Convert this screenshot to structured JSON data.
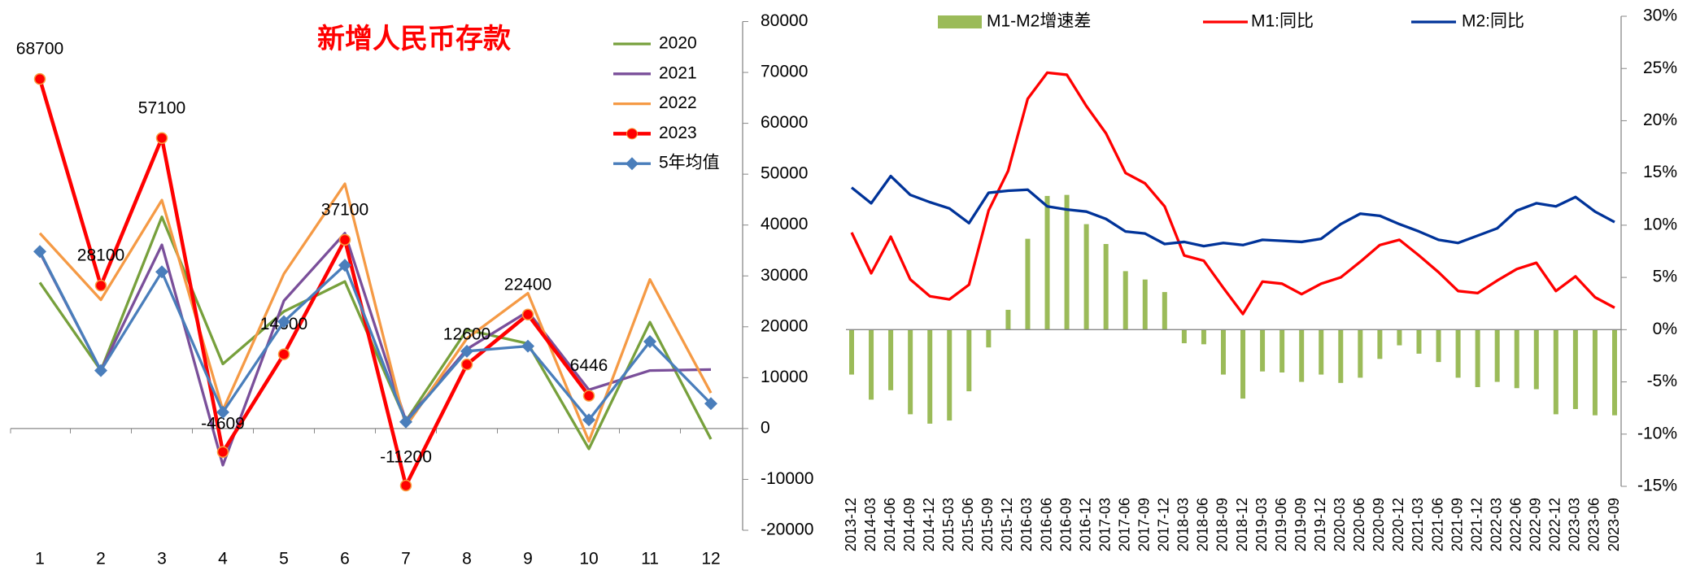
{
  "chart_data": [
    {
      "type": "line",
      "title": "新增人民币存款",
      "categories": [
        "1",
        "2",
        "3",
        "4",
        "5",
        "6",
        "7",
        "8",
        "9",
        "10",
        "11",
        "12"
      ],
      "ylim": [
        -20000,
        80000
      ],
      "yticks": [
        -20000,
        -10000,
        0,
        10000,
        20000,
        30000,
        40000,
        50000,
        60000,
        70000,
        80000
      ],
      "series": [
        {
          "name": "2020",
          "color": "#77a03c",
          "values": [
            28700,
            11400,
            41600,
            12700,
            23000,
            28900,
            1500,
            19400,
            16700,
            -4000,
            20900,
            -2100
          ]
        },
        {
          "name": "2021",
          "color": "#7a4f9a",
          "values": [
            34600,
            11400,
            36100,
            -7200,
            25100,
            38400,
            1500,
            15600,
            23000,
            7600,
            11400,
            11600
          ]
        },
        {
          "name": "2022",
          "color": "#f59a45",
          "values": [
            38400,
            25300,
            44900,
            3600,
            30400,
            48100,
            400,
            17700,
            26600,
            -2500,
            29300,
            7000
          ]
        },
        {
          "name": "2023",
          "color": "#ff0000",
          "marker": "circle",
          "data_labels": true,
          "values": [
            68700,
            28100,
            57100,
            -4609,
            14600,
            37100,
            -11200,
            12600,
            22400,
            6446,
            null,
            null
          ]
        },
        {
          "name": "5年均值",
          "color": "#4a7ebb",
          "marker": "diamond",
          "values": [
            34800,
            11400,
            30800,
            3200,
            21000,
            32100,
            1300,
            15200,
            16200,
            1700,
            17100,
            4900
          ]
        }
      ]
    },
    {
      "type": "bar_line",
      "categories": [
        "2013-12",
        "2014-03",
        "2014-06",
        "2014-09",
        "2014-12",
        "2015-03",
        "2015-06",
        "2015-09",
        "2015-12",
        "2016-03",
        "2016-06",
        "2016-09",
        "2016-12",
        "2017-03",
        "2017-06",
        "2017-09",
        "2017-12",
        "2018-03",
        "2018-06",
        "2018-09",
        "2018-12",
        "2019-03",
        "2019-06",
        "2019-09",
        "2019-12",
        "2020-03",
        "2020-06",
        "2020-09",
        "2020-12",
        "2021-03",
        "2021-06",
        "2021-09",
        "2021-12",
        "2022-03",
        "2022-06",
        "2022-09",
        "2022-12",
        "2023-03",
        "2023-06",
        "2023-09"
      ],
      "ylim": [
        -15,
        30
      ],
      "yticks": [
        {
          "value": -15,
          "label": "-15%"
        },
        {
          "value": -10,
          "label": "-10%"
        },
        {
          "value": -5,
          "label": "-5%"
        },
        {
          "value": 0,
          "label": "0%"
        },
        {
          "value": 5,
          "label": "5%"
        },
        {
          "value": 10,
          "label": "10%"
        },
        {
          "value": 15,
          "label": "15%"
        },
        {
          "value": 20,
          "label": "20%"
        },
        {
          "value": 25,
          "label": "25%"
        },
        {
          "value": 30,
          "label": "30%"
        }
      ],
      "series": [
        {
          "name": "M1-M2增速差",
          "color": "#9bbb59",
          "kind": "bar",
          "values": [
            -4.3,
            -6.7,
            -5.8,
            -8.1,
            -9.0,
            -8.7,
            -5.9,
            -1.7,
            1.9,
            8.7,
            12.8,
            12.9,
            10.1,
            8.2,
            5.6,
            4.8,
            3.6,
            -1.3,
            -1.4,
            -4.3,
            -6.6,
            -4.0,
            -4.1,
            -5.0,
            -4.3,
            -5.1,
            -4.6,
            -2.8,
            -1.5,
            -2.3,
            -3.1,
            -4.6,
            -5.5,
            -5.0,
            -5.6,
            -5.7,
            -8.1,
            -7.6,
            -8.2,
            -8.2
          ]
        },
        {
          "name": "M1:同比",
          "color": "#ff0000",
          "kind": "line",
          "values": [
            9.3,
            5.4,
            8.9,
            4.8,
            3.2,
            2.9,
            4.3,
            11.4,
            15.2,
            22.1,
            24.6,
            24.4,
            21.4,
            18.8,
            15.0,
            14.0,
            11.8,
            7.1,
            6.6,
            4.0,
            1.5,
            4.6,
            4.4,
            3.4,
            4.4,
            5.0,
            6.5,
            8.1,
            8.6,
            7.1,
            5.5,
            3.7,
            3.5,
            4.7,
            5.8,
            6.4,
            3.7,
            5.1,
            3.1,
            2.1
          ]
        },
        {
          "name": "M2:同比",
          "color": "#003399",
          "kind": "line",
          "values": [
            13.6,
            12.1,
            14.7,
            12.9,
            12.2,
            11.6,
            10.2,
            13.1,
            13.3,
            13.4,
            11.8,
            11.5,
            11.3,
            10.6,
            9.4,
            9.2,
            8.2,
            8.4,
            8.0,
            8.3,
            8.1,
            8.6,
            8.5,
            8.4,
            8.7,
            10.1,
            11.1,
            10.9,
            10.1,
            9.4,
            8.6,
            8.3,
            9.0,
            9.7,
            11.4,
            12.1,
            11.8,
            12.7,
            11.3,
            10.3
          ]
        }
      ]
    }
  ]
}
